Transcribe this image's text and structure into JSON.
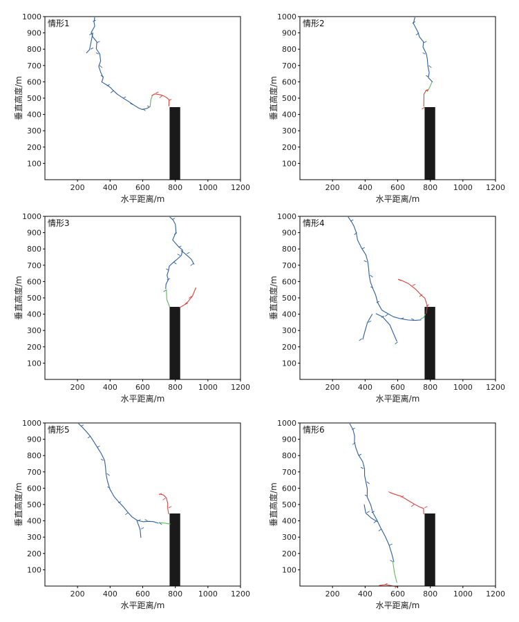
{
  "colors": {
    "upward_leader": "#2c5d9a",
    "downward_leader": "#d9403a",
    "connection": "#5cb85c",
    "building": "#1a1a1a",
    "axis": "#000000"
  },
  "chart_data": [
    {
      "type": "line",
      "panel_label": "情形1",
      "xlabel": "水平距离/m",
      "ylabel": "垂直高度/m",
      "xlim": [
        0,
        1200
      ],
      "ylim": [
        0,
        1000
      ],
      "xticks": [
        200,
        400,
        600,
        800,
        1000,
        1200
      ],
      "yticks": [
        100,
        200,
        300,
        400,
        500,
        600,
        700,
        800,
        900,
        1000
      ],
      "building": {
        "x0": 765,
        "x1": 830,
        "height": 445
      },
      "series": [
        {
          "role": "downward",
          "x": [
            300,
            295,
            305,
            290,
            300,
            320,
            310,
            330,
            340,
            335,
            350,
            360,
            345,
            380,
            400,
            420,
            450,
            480,
            510,
            540,
            570,
            600,
            630,
            645
          ],
          "y": [
            1000,
            970,
            940,
            900,
            870,
            840,
            800,
            770,
            730,
            700,
            660,
            630,
            600,
            575,
            560,
            545,
            520,
            500,
            480,
            460,
            445,
            435,
            440,
            445
          ]
        },
        {
          "role": "downward_branch",
          "x": [
            300,
            280,
            255
          ],
          "y": [
            900,
            800,
            780
          ]
        },
        {
          "role": "connection",
          "x": [
            645,
            650,
            660
          ],
          "y": [
            445,
            490,
            520
          ]
        },
        {
          "role": "upward",
          "x": [
            660,
            680,
            700,
            720,
            740,
            760,
            765
          ],
          "y": [
            520,
            530,
            525,
            515,
            500,
            485,
            445
          ]
        }
      ]
    },
    {
      "type": "line",
      "panel_label": "情形2",
      "xlabel": "水平距离/m",
      "ylabel": "垂直高度/m",
      "xlim": [
        0,
        1200
      ],
      "ylim": [
        0,
        1000
      ],
      "xticks": [
        200,
        400,
        600,
        800,
        1000,
        1200
      ],
      "yticks": [
        100,
        200,
        300,
        400,
        500,
        600,
        700,
        800,
        900,
        1000
      ],
      "building": {
        "x0": 765,
        "x1": 830,
        "height": 445
      },
      "series": [
        {
          "role": "downward",
          "x": [
            700,
            690,
            710,
            730,
            740,
            760,
            750,
            770,
            780,
            790,
            800,
            790,
            810
          ],
          "y": [
            1000,
            960,
            930,
            900,
            870,
            840,
            810,
            770,
            740,
            700,
            660,
            630,
            600
          ]
        },
        {
          "role": "connection",
          "x": [
            810,
            800,
            790,
            780
          ],
          "y": [
            600,
            575,
            555,
            540
          ]
        },
        {
          "role": "upward",
          "x": [
            780,
            770,
            760,
            765
          ],
          "y": [
            540,
            545,
            520,
            445
          ]
        }
      ]
    },
    {
      "type": "line",
      "panel_label": "情形3",
      "xlabel": "水平距离/m",
      "ylabel": "垂直高度/m",
      "xlim": [
        0,
        1200
      ],
      "ylim": [
        0,
        1000
      ],
      "xticks": [
        200,
        400,
        600,
        800,
        1000,
        1200
      ],
      "yticks": [
        100,
        200,
        300,
        400,
        500,
        600,
        700,
        800,
        900,
        1000
      ],
      "building": {
        "x0": 765,
        "x1": 830,
        "height": 445
      },
      "series": [
        {
          "role": "downward",
          "x": [
            760,
            780,
            800,
            810,
            790,
            820,
            840,
            830,
            810,
            790,
            770,
            760,
            745,
            750,
            740,
            745
          ],
          "y": [
            1000,
            980,
            950,
            900,
            850,
            810,
            790,
            760,
            740,
            720,
            700,
            670,
            640,
            610,
            580,
            550
          ]
        },
        {
          "role": "downward_branch",
          "x": [
            840,
            870,
            900,
            910
          ],
          "y": [
            790,
            770,
            740,
            710
          ]
        },
        {
          "role": "connection",
          "x": [
            745,
            748,
            765
          ],
          "y": [
            550,
            490,
            445
          ]
        },
        {
          "role": "upward",
          "x": [
            830,
            860,
            880,
            900,
            920
          ],
          "y": [
            445,
            460,
            480,
            510,
            560
          ]
        }
      ]
    },
    {
      "type": "line",
      "panel_label": "情形4",
      "xlabel": "水平距离/m",
      "ylabel": "垂直高度/m",
      "xlim": [
        0,
        1200
      ],
      "ylim": [
        0,
        1000
      ],
      "xticks": [
        200,
        400,
        600,
        800,
        1000,
        1200
      ],
      "yticks": [
        100,
        200,
        300,
        400,
        500,
        600,
        700,
        800,
        900,
        1000
      ],
      "building": {
        "x0": 765,
        "x1": 830,
        "height": 445
      },
      "series": [
        {
          "role": "downward",
          "x": [
            290,
            310,
            330,
            350,
            360,
            380,
            400,
            410,
            420,
            430,
            440,
            450,
            460,
            470,
            500,
            540,
            580,
            620,
            660,
            700,
            740
          ],
          "y": [
            1000,
            970,
            940,
            900,
            850,
            800,
            760,
            720,
            680,
            640,
            600,
            560,
            520,
            470,
            420,
            400,
            380,
            370,
            365,
            365,
            370
          ]
        },
        {
          "role": "downward_branch",
          "x": [
            450,
            420,
            400,
            380
          ],
          "y": [
            400,
            350,
            300,
            250
          ]
        },
        {
          "role": "downward_branch",
          "x": [
            460,
            500,
            550,
            600
          ],
          "y": [
            400,
            380,
            330,
            230
          ]
        },
        {
          "role": "connection",
          "x": [
            740,
            760,
            770
          ],
          "y": [
            370,
            380,
            400
          ]
        },
        {
          "role": "upward",
          "x": [
            770,
            775,
            765,
            750,
            720,
            690,
            660,
            620,
            600
          ],
          "y": [
            400,
            450,
            500,
            520,
            555,
            575,
            590,
            605,
            610
          ]
        }
      ]
    },
    {
      "type": "line",
      "panel_label": "情形5",
      "xlabel": "水平距离/m",
      "ylabel": "垂直高度/m",
      "xlim": [
        0,
        1200
      ],
      "ylim": [
        0,
        1000
      ],
      "xticks": [
        200,
        400,
        600,
        800,
        1000,
        1200
      ],
      "yticks": [
        100,
        200,
        300,
        400,
        500,
        600,
        700,
        800,
        900,
        1000
      ],
      "building": {
        "x0": 765,
        "x1": 830,
        "height": 445
      },
      "series": [
        {
          "role": "downward",
          "x": [
            200,
            220,
            250,
            280,
            300,
            320,
            340,
            360,
            370,
            380,
            390,
            400,
            420,
            450,
            480,
            510,
            540,
            570,
            600,
            630,
            660,
            700
          ],
          "y": [
            1000,
            980,
            950,
            920,
            890,
            850,
            810,
            770,
            730,
            690,
            650,
            600,
            550,
            510,
            480,
            450,
            420,
            400,
            395,
            400,
            400,
            390
          ]
        },
        {
          "role": "downward_branch",
          "x": [
            570,
            590,
            590
          ],
          "y": [
            400,
            350,
            300
          ]
        },
        {
          "role": "connection",
          "x": [
            700,
            740,
            770
          ],
          "y": [
            390,
            385,
            380
          ]
        },
        {
          "role": "upward",
          "x": [
            765,
            760,
            755,
            740,
            720,
            700
          ],
          "y": [
            445,
            480,
            510,
            540,
            555,
            560
          ]
        }
      ]
    },
    {
      "type": "line",
      "panel_label": "情形6",
      "xlabel": "水平距离/m",
      "ylabel": "垂直高度/m",
      "xlim": [
        0,
        1200
      ],
      "ylim": [
        0,
        1000
      ],
      "xticks": [
        200,
        400,
        600,
        800,
        1000,
        1200
      ],
      "yticks": [
        100,
        200,
        300,
        400,
        500,
        600,
        700,
        800,
        900,
        1000
      ],
      "building": {
        "x0": 765,
        "x1": 830,
        "height": 445
      },
      "series": [
        {
          "role": "downward",
          "x": [
            300,
            320,
            335,
            340,
            350,
            360,
            380,
            390,
            395,
            410,
            420,
            415,
            430,
            440,
            470,
            500,
            530,
            550,
            560,
            570
          ],
          "y": [
            1000,
            960,
            920,
            880,
            840,
            800,
            760,
            720,
            680,
            640,
            600,
            550,
            500,
            450,
            400,
            350,
            300,
            250,
            200,
            150
          ]
        },
        {
          "role": "downward_branch",
          "x": [
            400,
            410,
            440,
            470
          ],
          "y": [
            500,
            450,
            420,
            400
          ]
        },
        {
          "role": "connection",
          "x": [
            570,
            580,
            595
          ],
          "y": [
            150,
            80,
            20
          ]
        },
        {
          "role": "upward",
          "x": [
            765,
            765,
            740,
            700,
            660,
            620,
            580,
            560
          ],
          "y": [
            445,
            480,
            485,
            500,
            520,
            545,
            560,
            570
          ]
        },
        {
          "role": "upward_branch",
          "x": [
            480,
            520,
            560,
            600
          ],
          "y": [
            0,
            8,
            4,
            0
          ]
        }
      ]
    }
  ]
}
